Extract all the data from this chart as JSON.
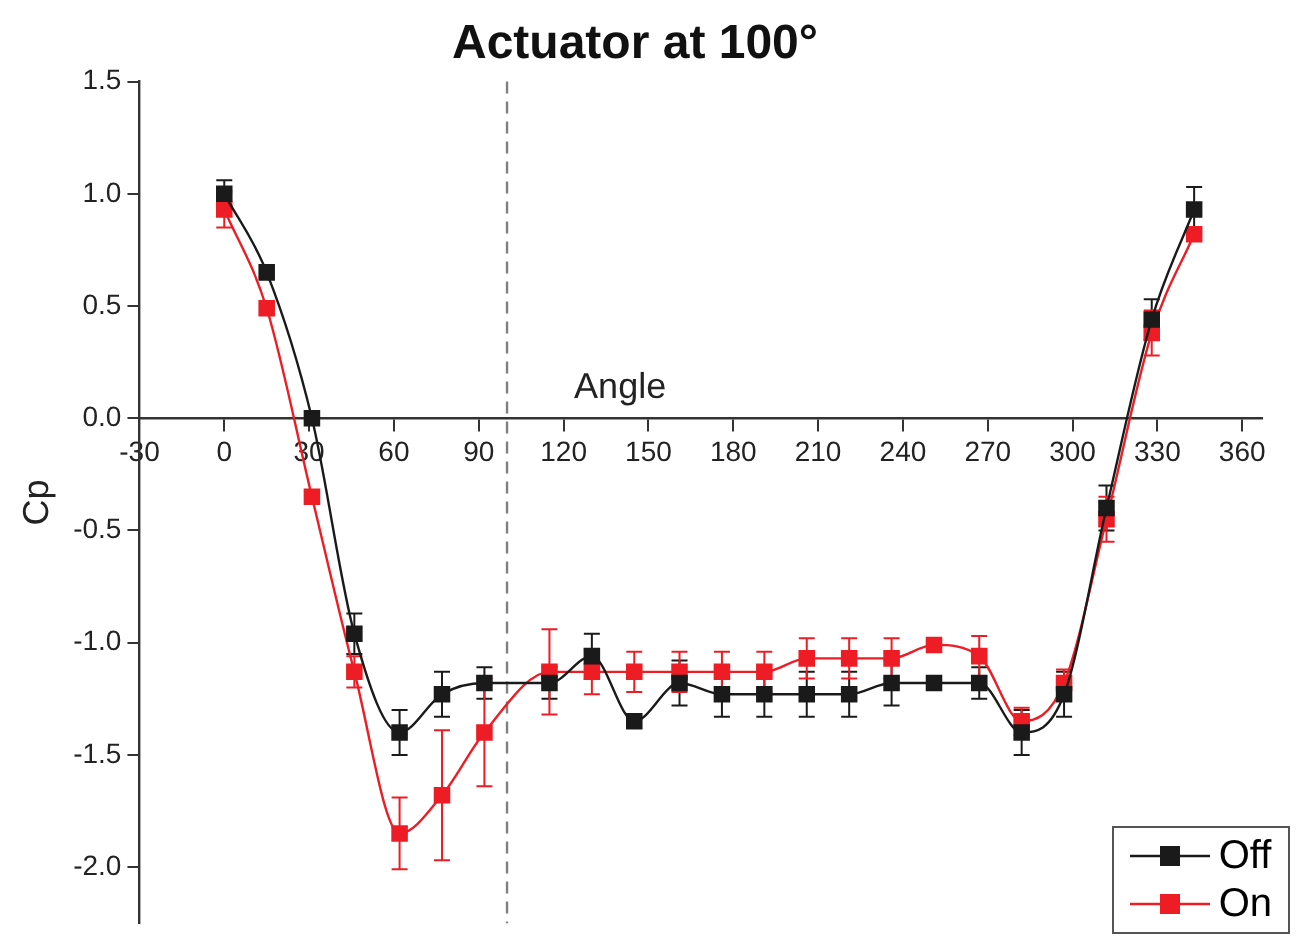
{
  "chart_data": {
    "type": "line",
    "title": "Actuator at 100°",
    "xlabel": "Angle",
    "ylabel": "Cp",
    "x": [
      0,
      15,
      31,
      46,
      62,
      77,
      92,
      115,
      130,
      145,
      161,
      176,
      191,
      206,
      221,
      236,
      251,
      267,
      282,
      297,
      312,
      328,
      343
    ],
    "series": [
      {
        "name": "Off",
        "color": "#1a1a1a",
        "values": [
          1.0,
          0.65,
          0.0,
          -0.96,
          -1.4,
          -1.23,
          -1.18,
          -1.18,
          -1.06,
          -1.35,
          -1.18,
          -1.23,
          -1.23,
          -1.23,
          -1.23,
          -1.18,
          -1.18,
          -1.18,
          -1.4,
          -1.23,
          -0.4,
          0.44,
          0.93
        ],
        "errors": [
          0.06,
          null,
          null,
          0.09,
          0.1,
          0.1,
          0.07,
          0.07,
          0.1,
          null,
          0.1,
          0.1,
          0.1,
          0.1,
          0.1,
          0.1,
          null,
          0.07,
          0.1,
          0.1,
          0.1,
          0.09,
          0.1
        ]
      },
      {
        "name": "On",
        "color": "#ee1c24",
        "values": [
          0.93,
          0.49,
          -0.35,
          -1.13,
          -1.85,
          -1.68,
          -1.4,
          -1.13,
          -1.13,
          -1.13,
          -1.13,
          -1.13,
          -1.13,
          -1.07,
          -1.07,
          -1.07,
          -1.01,
          -1.06,
          -1.35,
          -1.18,
          -0.45,
          0.38,
          0.82
        ],
        "errors": [
          0.08,
          null,
          null,
          0.07,
          0.16,
          0.29,
          0.24,
          0.19,
          0.1,
          0.09,
          0.09,
          0.09,
          0.09,
          0.09,
          0.09,
          0.09,
          null,
          0.09,
          0.06,
          0.06,
          0.1,
          0.1,
          null
        ]
      }
    ],
    "xlim": [
      -30,
      367
    ],
    "xticks": [
      -30,
      0,
      30,
      60,
      90,
      120,
      150,
      180,
      210,
      240,
      270,
      300,
      330,
      360
    ],
    "ylim": [
      -2.25,
      1.5
    ],
    "yticks": [
      {
        "value": 1.5,
        "label": "1.5"
      },
      {
        "value": 1.0,
        "label": "1.0"
      },
      {
        "value": 0.5,
        "label": "0.5"
      },
      {
        "value": 0,
        "label": "0.0"
      },
      {
        "value": -0.5,
        "label": "-0.5"
      },
      {
        "value": -1.0,
        "label": "-1.0"
      },
      {
        "value": -1.5,
        "label": "-1.5"
      },
      {
        "value": -2.0,
        "label": "-2.0"
      }
    ],
    "ref_lines": [
      {
        "axis": "x",
        "value": 100,
        "color": "#808080",
        "line_style": "dashed"
      }
    ],
    "grid": false,
    "legend": "bottom right",
    "marker": "square",
    "line_style": "solid"
  }
}
